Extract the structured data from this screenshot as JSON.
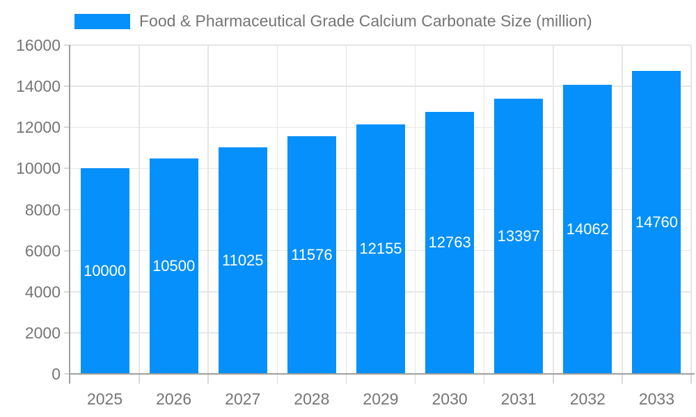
{
  "chart_data": {
    "type": "bar",
    "title": "Food & Pharmaceutical Grade Calcium Carbonate Size (million)",
    "categories": [
      "2025",
      "2026",
      "2027",
      "2028",
      "2029",
      "2030",
      "2031",
      "2032",
      "2033"
    ],
    "values": [
      10000,
      10500,
      11025,
      11576,
      12155,
      12763,
      13397,
      14062,
      14760
    ],
    "value_labels": [
      "10000",
      "10500",
      "11025",
      "11576",
      "12155",
      "12763",
      "13397",
      "14062",
      "14760"
    ],
    "xlabel": "",
    "ylabel": "",
    "ylim": [
      0,
      16000
    ],
    "yticks": [
      0,
      2000,
      4000,
      6000,
      8000,
      10000,
      12000,
      14000,
      16000
    ],
    "grid": "horizontal and vertical gridlines on",
    "legend_position": "top-left",
    "bar_label_position": "inside-center"
  },
  "colors": {
    "bar": "#0590fb",
    "text": "#757575",
    "axis": "#9e9e9e",
    "gridline": "#e6e6e6",
    "tick": "#d9d9d9",
    "bar_label": "#ffffff",
    "background": "#ffffff"
  }
}
